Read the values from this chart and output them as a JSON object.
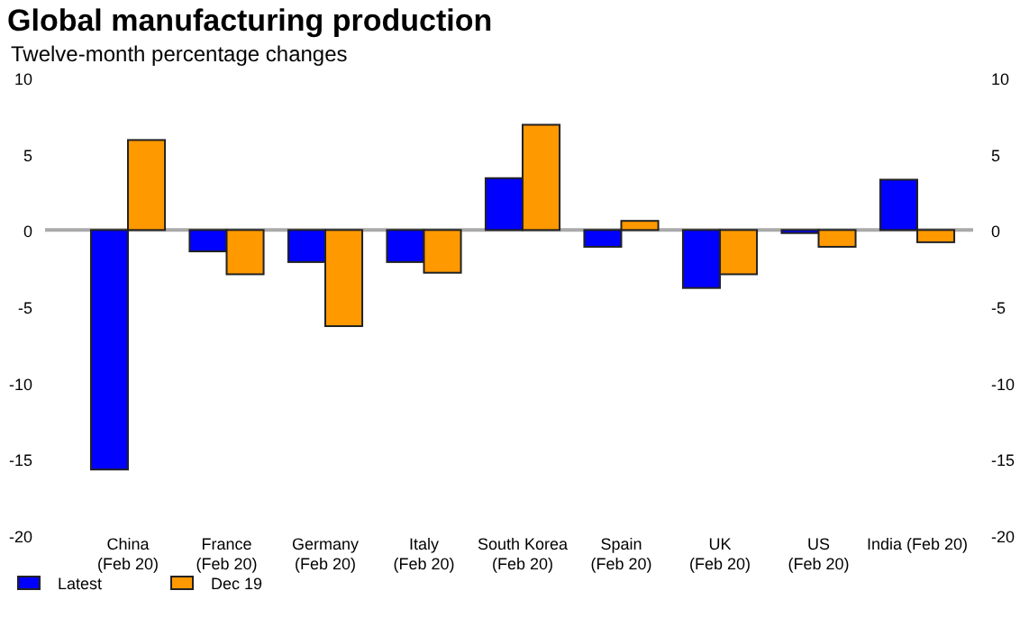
{
  "chart_data": {
    "type": "bar",
    "title": "Global manufacturing production",
    "subtitle": "Twelve-month percentage changes",
    "categories": [
      "China\n(Feb 20)",
      "France\n(Feb 20)",
      "Germany\n(Feb 20)",
      "Italy\n(Feb 20)",
      "South Korea\n(Feb 20)",
      "Spain\n(Feb 20)",
      "UK\n(Feb 20)",
      "US\n(Feb 20)",
      "India (Feb 20)"
    ],
    "series": [
      {
        "name": "Latest",
        "color": "#0000ff",
        "values": [
          -15.7,
          -1.4,
          -2.1,
          -2.1,
          3.4,
          -1.1,
          -3.8,
          -0.2,
          3.3
        ]
      },
      {
        "name": "Dec 19",
        "color": "#ff9900",
        "values": [
          5.9,
          -2.9,
          -6.3,
          -2.8,
          6.9,
          0.6,
          -2.9,
          -1.1,
          -0.8
        ]
      }
    ],
    "ylim": [
      -20,
      10
    ],
    "yticks": [
      -20,
      -15,
      -10,
      -5,
      0,
      5,
      10
    ],
    "y2lim": [
      -20,
      10
    ],
    "y2ticks": [
      -20,
      -15,
      -10,
      -5,
      0,
      5,
      10
    ],
    "ref_lines": [
      {
        "axis": "y",
        "value": 0,
        "color": "#aaaaaa"
      }
    ],
    "legend": "bottom left"
  }
}
